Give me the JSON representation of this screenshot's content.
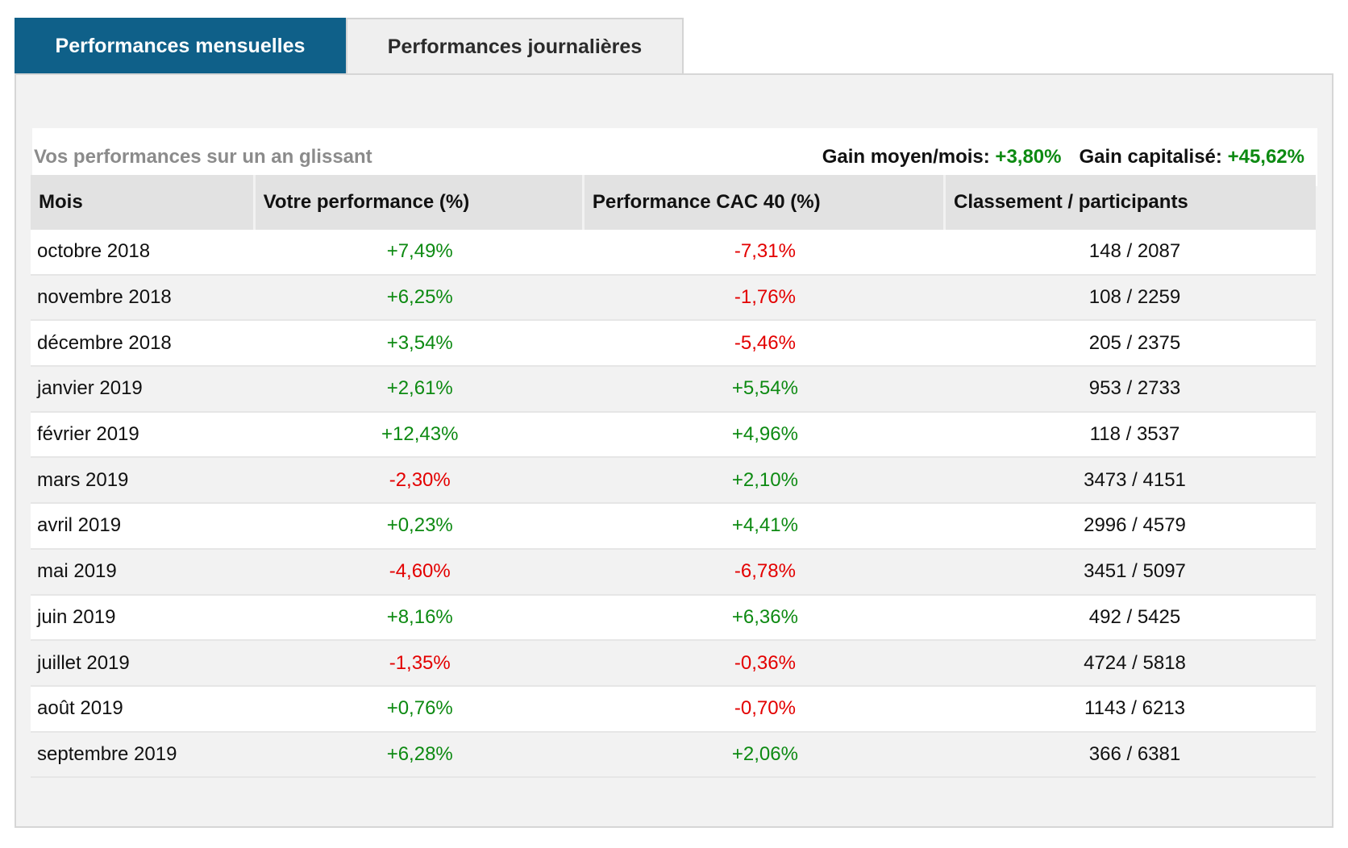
{
  "tabs": {
    "monthly": "Performances mensuelles",
    "daily": "Performances journalières"
  },
  "summary": {
    "title": "Vos performances sur un an glissant",
    "avg_label": "Gain moyen/mois:",
    "avg_value": "+3,80%",
    "cap_label": "Gain capitalisé:",
    "cap_value": "+45,62%"
  },
  "table": {
    "headers": [
      "Mois",
      "Votre performance (%)",
      "Performance CAC 40 (%)",
      "Classement / participants"
    ],
    "rows": [
      {
        "month": "octobre 2018",
        "perf": "+7,49%",
        "cac": "-7,31%",
        "rank": "148 / 2087"
      },
      {
        "month": "novembre 2018",
        "perf": "+6,25%",
        "cac": "-1,76%",
        "rank": "108 / 2259"
      },
      {
        "month": "décembre 2018",
        "perf": "+3,54%",
        "cac": "-5,46%",
        "rank": "205 / 2375"
      },
      {
        "month": "janvier 2019",
        "perf": "+2,61%",
        "cac": "+5,54%",
        "rank": "953 / 2733"
      },
      {
        "month": "février 2019",
        "perf": "+12,43%",
        "cac": "+4,96%",
        "rank": "118 / 3537"
      },
      {
        "month": "mars 2019",
        "perf": "-2,30%",
        "cac": "+2,10%",
        "rank": "3473 / 4151"
      },
      {
        "month": "avril 2019",
        "perf": "+0,23%",
        "cac": "+4,41%",
        "rank": "2996 / 4579"
      },
      {
        "month": "mai 2019",
        "perf": "-4,60%",
        "cac": "-6,78%",
        "rank": "3451 / 5097"
      },
      {
        "month": "juin 2019",
        "perf": "+8,16%",
        "cac": "+6,36%",
        "rank": "492 / 5425"
      },
      {
        "month": "juillet 2019",
        "perf": "-1,35%",
        "cac": "-0,36%",
        "rank": "4724 / 5818"
      },
      {
        "month": "août 2019",
        "perf": "+0,76%",
        "cac": "-0,70%",
        "rank": "1143 / 6213"
      },
      {
        "month": "septembre 2019",
        "perf": "+6,28%",
        "cac": "+2,06%",
        "rank": "366 / 6381"
      }
    ]
  },
  "colors": {
    "active_tab": "#0f6089",
    "positive": "#0d8a12",
    "negative": "#e30000"
  }
}
